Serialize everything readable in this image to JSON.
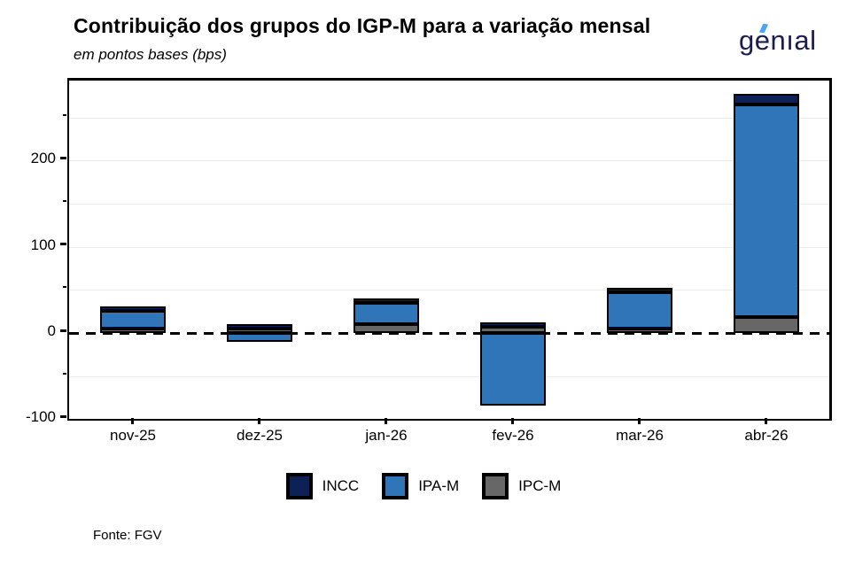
{
  "header": {
    "title": "Contribuição dos grupos do IGP-M para a variação mensal",
    "subtitle": "em pontos bases (bps)",
    "logo_text": "genıal"
  },
  "footer": {
    "source_label": "Fonte: FGV"
  },
  "colors": {
    "incc": "#0c2157",
    "ipam": "#2f75b8",
    "ipcm": "#676767",
    "bar_outline": "#000000",
    "logo_navy": "#1b1c4f",
    "logo_accent": "#4da3f5",
    "gridline": "#ececec"
  },
  "chart_data": {
    "type": "bar",
    "stacked": true,
    "title": "Contribuição dos grupos do IGP-M para a variação mensal",
    "ylabel": "em pontos bases (bps)",
    "categories": [
      "nov-25",
      "dez-25",
      "jan-26",
      "fev-26",
      "mar-26",
      "abr-26"
    ],
    "series": [
      {
        "name": "INCC",
        "color": "#0c2157",
        "values": [
          2,
          2,
          5,
          4,
          5,
          12
        ]
      },
      {
        "name": "IPA-M",
        "color": "#2f75b8",
        "values": [
          21,
          -10,
          25,
          -84,
          42,
          247
        ]
      },
      {
        "name": "IPC-M",
        "color": "#676767",
        "values": [
          5,
          5,
          10,
          7,
          5,
          18
        ]
      }
    ],
    "stack_order_bottom_to_top": [
      "IPC-M",
      "IPA-M",
      "INCC"
    ],
    "totals": [
      28,
      -3,
      40,
      -73,
      52,
      277
    ],
    "ylim": [
      -100,
      294
    ],
    "y_ticks_labeled": [
      200,
      100,
      0,
      -100
    ],
    "y_ticks_minor": [
      250,
      150,
      50,
      -50
    ],
    "grid_values": [
      250,
      200,
      150,
      100,
      50,
      -50
    ],
    "zero_line_style": "dashed",
    "legend_position": "bottom-center",
    "legend": [
      "INCC",
      "IPA-M",
      "IPC-M"
    ],
    "source": "Fonte: FGV"
  }
}
